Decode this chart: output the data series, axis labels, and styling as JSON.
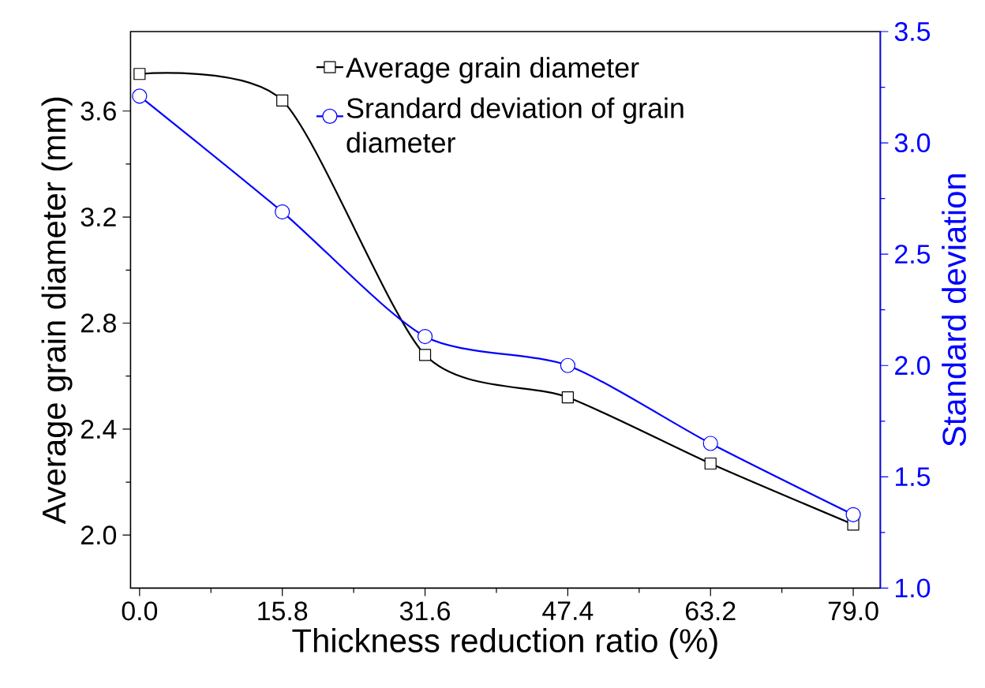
{
  "chart_data": {
    "type": "line",
    "xlabel": "Thickness reduction ratio (%)",
    "ylabel": "Average grain diameter (mm)",
    "y2label": "Standard deviation",
    "x": [
      0.0,
      15.8,
      31.6,
      47.4,
      63.2,
      79.0
    ],
    "xlim": [
      -1,
      82
    ],
    "xticks": [
      {
        "value": 0,
        "label": "0.0"
      },
      15.8,
      31.6,
      47.4,
      63.2,
      {
        "value": 79,
        "label": "79.0"
      }
    ],
    "ylim": [
      1.8,
      3.9
    ],
    "yticks": [
      {
        "value": 2,
        "label": "2.0"
      },
      2.4,
      2.8,
      3.2,
      3.6
    ],
    "y2lim": [
      1.0,
      3.5
    ],
    "y2ticks": [
      {
        "value": 1,
        "label": "1.0"
      },
      1.5,
      {
        "value": 2,
        "label": "2.0"
      },
      2.5,
      {
        "value": 3,
        "label": "3.0"
      },
      3.5
    ],
    "series": [
      {
        "name": "Average grain diameter",
        "color": "#000000",
        "marker": "square",
        "values": [
          3.74,
          3.64,
          2.68,
          2.52,
          2.27,
          2.04
        ]
      },
      {
        "name": "Srandard deviation of grain diameter",
        "color": "#0000ff",
        "marker": "circle",
        "axis": "y2",
        "values": [
          3.21,
          2.69,
          2.13,
          2.0,
          1.65,
          1.33
        ]
      }
    ],
    "legend": "top"
  }
}
